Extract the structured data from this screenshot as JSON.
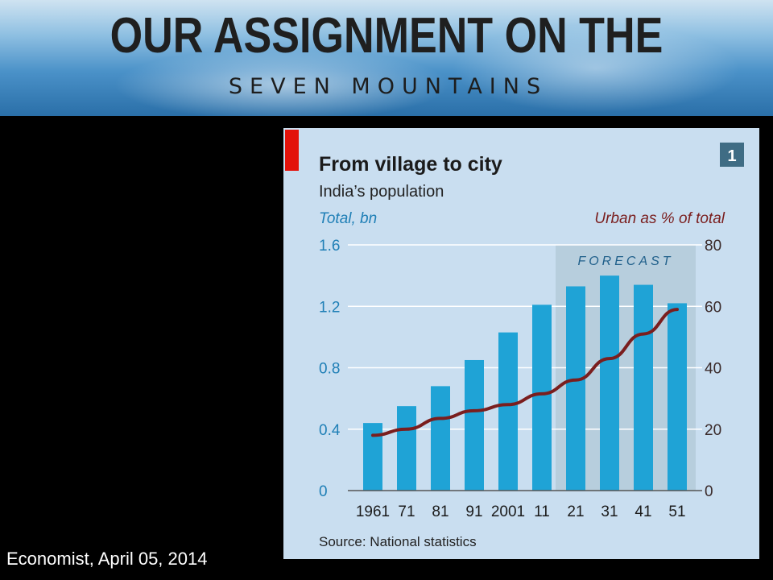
{
  "slide": {
    "title": "OUR ASSIGNMENT ON THE",
    "subtitle": "SEVEN MOUNTAINS",
    "credit": "Economist, April  05, 2014"
  },
  "colors": {
    "bar": "#1fa3d6",
    "line": "#7a1e1e",
    "forecast_shade": "#b7cedd",
    "panel_bg": "#c9def0",
    "accent_red": "#e3120b",
    "badge": "#3f6c84"
  },
  "chart_data": {
    "type": "bar",
    "title": "From village to city",
    "subtitle": "India’s population",
    "badge": "1",
    "left_axis_label": "Total, bn",
    "right_axis_label": "Urban as % of total",
    "forecast_label": "FORECAST",
    "source": "Source: National statistics",
    "categories": [
      "1961",
      "71",
      "81",
      "91",
      "2001",
      "11",
      "21",
      "31",
      "41",
      "51"
    ],
    "forecast_start_index": 6,
    "left_ylim": [
      0,
      1.6
    ],
    "left_ticks": [
      "0",
      "0.4",
      "0.8",
      "1.2",
      "1.6"
    ],
    "right_ylim": [
      0,
      80
    ],
    "right_ticks": [
      "0",
      "20",
      "40",
      "60",
      "80"
    ],
    "grid": true,
    "series": [
      {
        "type": "bar",
        "axis": "left",
        "values": [
          0.44,
          0.55,
          0.68,
          0.85,
          1.03,
          1.21,
          1.33,
          1.4,
          1.34,
          1.22
        ]
      },
      {
        "type": "line",
        "axis": "right",
        "values": [
          18,
          20,
          23.5,
          26,
          28,
          31.5,
          36,
          43,
          51,
          59
        ]
      }
    ]
  }
}
